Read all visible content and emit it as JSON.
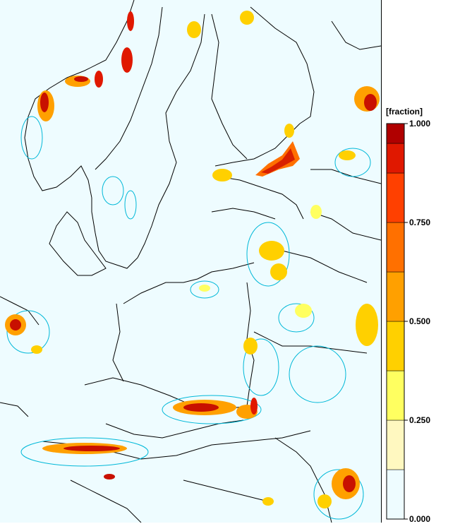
{
  "legend": {
    "title": "[fraction]",
    "ticks": [
      {
        "value": 1.0,
        "label": "1.000"
      },
      {
        "value": 0.75,
        "label": "0.750"
      },
      {
        "value": 0.5,
        "label": "0.500"
      },
      {
        "value": 0.25,
        "label": "0.250"
      },
      {
        "value": 0.0,
        "label": "0.000"
      }
    ],
    "bins": [
      {
        "from": 0.0,
        "to": 0.125,
        "color": "#eefcff"
      },
      {
        "from": 0.125,
        "to": 0.25,
        "color": "#fff8c0"
      },
      {
        "from": 0.25,
        "to": 0.375,
        "color": "#ffff60"
      },
      {
        "from": 0.375,
        "to": 0.5,
        "color": "#ffd000"
      },
      {
        "from": 0.5,
        "to": 0.625,
        "color": "#ffa000"
      },
      {
        "from": 0.625,
        "to": 0.75,
        "color": "#ff7000"
      },
      {
        "from": 0.75,
        "to": 0.875,
        "color": "#ff4000"
      },
      {
        "from": 0.875,
        "to": 0.95,
        "color": "#e01800"
      },
      {
        "from": 0.95,
        "to": 1.0,
        "color": "#b00000"
      }
    ]
  },
  "colors": {
    "background": "#eefcff",
    "borders": "#000000",
    "contour": "#00b8d8"
  }
}
